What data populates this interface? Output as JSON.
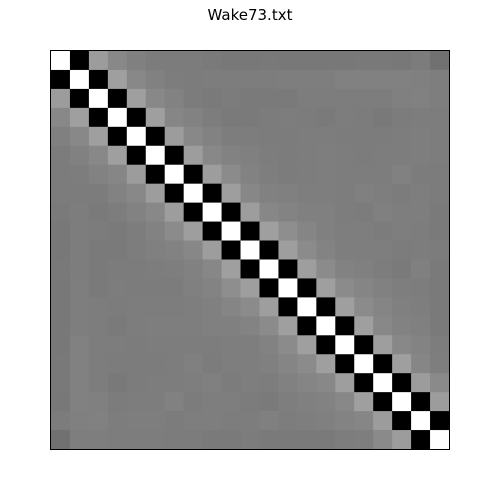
{
  "chart_data": {
    "type": "heatmap",
    "title": "Wake73.txt",
    "xlabel": "",
    "ylabel": "",
    "colormap": "grayscale",
    "axes_ticks": false,
    "grid": false,
    "legend": "none",
    "zlim": [
      -1,
      1
    ],
    "rows": 21,
    "cols": 21,
    "values": [
      [
        1.0,
        -1.0,
        0.22,
        0.07,
        0.0,
        -0.03,
        -0.03,
        -0.03,
        -0.04,
        -0.06,
        -0.06,
        -0.05,
        -0.06,
        -0.06,
        -0.06,
        -0.06,
        -0.05,
        -0.05,
        -0.06,
        -0.03,
        -0.11
      ],
      [
        -1.0,
        1.0,
        -1.0,
        0.25,
        0.07,
        0.01,
        -0.02,
        -0.03,
        -0.02,
        -0.02,
        -0.02,
        -0.02,
        -0.01,
        -0.01,
        -0.01,
        0.01,
        0.01,
        0.01,
        0.01,
        0.0,
        -0.01
      ],
      [
        0.22,
        -1.0,
        1.0,
        -1.0,
        0.25,
        0.07,
        0.02,
        -0.03,
        -0.04,
        -0.03,
        -0.04,
        -0.04,
        -0.04,
        -0.02,
        -0.02,
        -0.02,
        -0.02,
        -0.02,
        0.0,
        0.01,
        -0.01
      ],
      [
        0.07,
        0.25,
        -1.0,
        1.0,
        -1.0,
        0.25,
        0.05,
        0.02,
        -0.02,
        -0.04,
        -0.04,
        -0.03,
        -0.02,
        -0.03,
        -0.04,
        -0.02,
        -0.03,
        -0.05,
        -0.03,
        -0.02,
        -0.02
      ],
      [
        0.0,
        0.07,
        0.25,
        -1.0,
        1.0,
        -1.0,
        0.22,
        0.07,
        0.02,
        -0.02,
        -0.02,
        -0.03,
        -0.03,
        -0.02,
        -0.02,
        -0.03,
        -0.03,
        -0.03,
        -0.02,
        -0.01,
        -0.02
      ],
      [
        -0.03,
        0.01,
        0.07,
        0.25,
        -1.0,
        1.0,
        -1.0,
        0.23,
        0.07,
        0.02,
        0.0,
        -0.02,
        -0.03,
        -0.02,
        -0.01,
        -0.02,
        -0.03,
        -0.02,
        -0.02,
        -0.01,
        -0.02
      ],
      [
        -0.03,
        -0.02,
        0.02,
        0.05,
        0.22,
        -1.0,
        1.0,
        -1.0,
        0.23,
        0.09,
        0.02,
        -0.01,
        -0.03,
        -0.02,
        -0.01,
        -0.02,
        -0.02,
        -0.02,
        0.01,
        -0.03,
        -0.03
      ],
      [
        -0.03,
        -0.03,
        -0.03,
        0.02,
        0.07,
        0.23,
        -1.0,
        1.0,
        -1.0,
        0.24,
        0.06,
        0.01,
        0.0,
        -0.01,
        -0.01,
        -0.02,
        0.0,
        -0.01,
        -0.03,
        -0.01,
        -0.03
      ],
      [
        -0.04,
        -0.02,
        -0.04,
        -0.02,
        0.02,
        0.07,
        0.23,
        -1.0,
        1.0,
        -1.0,
        0.23,
        0.06,
        0.03,
        0.0,
        0.0,
        -0.02,
        -0.03,
        0.0,
        -0.01,
        -0.01,
        -0.04
      ],
      [
        -0.06,
        -0.02,
        -0.03,
        -0.04,
        -0.02,
        0.02,
        0.09,
        0.24,
        -1.0,
        1.0,
        -1.0,
        0.25,
        0.11,
        0.04,
        0.0,
        -0.01,
        -0.01,
        -0.03,
        -0.01,
        -0.02,
        -0.04
      ],
      [
        -0.06,
        -0.02,
        -0.04,
        -0.04,
        -0.02,
        0.0,
        0.02,
        0.06,
        0.23,
        -1.0,
        1.0,
        -1.0,
        0.24,
        0.09,
        0.03,
        -0.01,
        -0.01,
        -0.01,
        -0.03,
        -0.02,
        -0.03
      ],
      [
        -0.05,
        -0.02,
        -0.04,
        -0.03,
        -0.03,
        -0.02,
        -0.01,
        0.01,
        0.06,
        0.25,
        -1.0,
        1.0,
        -1.0,
        0.24,
        0.09,
        0.02,
        0.0,
        -0.02,
        -0.04,
        0.0,
        -0.04
      ],
      [
        -0.06,
        -0.01,
        -0.04,
        -0.02,
        -0.03,
        -0.03,
        -0.03,
        0.0,
        0.03,
        0.11,
        0.24,
        -1.0,
        1.0,
        -1.0,
        0.25,
        0.09,
        0.04,
        0.01,
        -0.01,
        -0.02,
        -0.04
      ],
      [
        -0.06,
        -0.01,
        -0.02,
        -0.03,
        -0.02,
        -0.02,
        -0.02,
        -0.01,
        0.0,
        0.04,
        0.09,
        0.24,
        -1.0,
        1.0,
        -1.0,
        0.25,
        0.09,
        0.04,
        0.0,
        -0.01,
        -0.04
      ],
      [
        -0.06,
        -0.01,
        -0.02,
        -0.04,
        -0.02,
        -0.01,
        -0.01,
        -0.01,
        0.0,
        0.0,
        0.03,
        0.09,
        0.25,
        -1.0,
        1.0,
        -1.0,
        0.25,
        0.07,
        0.02,
        0.0,
        -0.04
      ],
      [
        -0.06,
        0.01,
        -0.02,
        -0.02,
        -0.03,
        -0.02,
        -0.02,
        -0.02,
        -0.02,
        -0.01,
        -0.01,
        0.02,
        0.09,
        0.25,
        -1.0,
        1.0,
        -1.0,
        0.24,
        0.07,
        0.03,
        -0.02
      ],
      [
        -0.05,
        0.01,
        -0.02,
        -0.03,
        -0.03,
        -0.03,
        -0.02,
        0.0,
        -0.03,
        -0.01,
        -0.01,
        0.0,
        0.04,
        0.09,
        0.25,
        -1.0,
        1.0,
        -1.0,
        0.25,
        0.05,
        -0.01
      ],
      [
        -0.05,
        0.01,
        -0.02,
        -0.05,
        -0.03,
        -0.02,
        -0.02,
        -0.01,
        0.0,
        -0.03,
        -0.01,
        -0.02,
        0.01,
        0.04,
        0.07,
        0.24,
        -1.0,
        1.0,
        -1.0,
        0.22,
        0.08
      ],
      [
        -0.06,
        0.01,
        0.0,
        -0.03,
        -0.02,
        -0.02,
        0.01,
        -0.03,
        -0.01,
        -0.01,
        -0.03,
        -0.04,
        -0.01,
        0.0,
        0.02,
        0.07,
        0.25,
        -1.0,
        1.0,
        -1.0,
        0.22
      ],
      [
        -0.03,
        0.0,
        0.01,
        -0.02,
        -0.01,
        -0.01,
        -0.03,
        -0.01,
        -0.01,
        -0.02,
        -0.02,
        0.0,
        -0.02,
        -0.01,
        0.0,
        0.03,
        0.05,
        0.22,
        -1.0,
        1.0,
        -1.0
      ],
      [
        -0.11,
        -0.01,
        -0.01,
        -0.02,
        -0.02,
        -0.02,
        -0.03,
        -0.03,
        -0.04,
        -0.04,
        -0.03,
        -0.04,
        -0.04,
        -0.04,
        -0.04,
        -0.02,
        -0.01,
        0.08,
        0.22,
        -1.0,
        1.0
      ]
    ]
  }
}
